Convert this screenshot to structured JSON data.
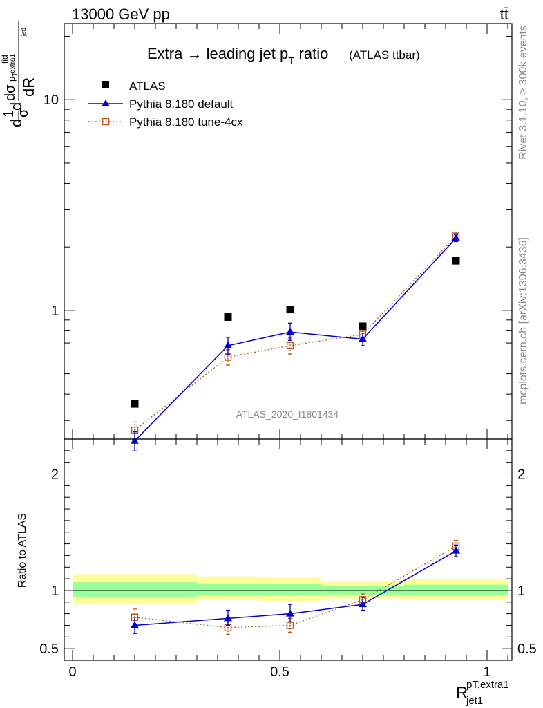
{
  "header": {
    "energy_label": "13000 GeV pp",
    "process_label": "tt̄"
  },
  "side_labels": {
    "rivet": "Rivet 3.1.10, ≥ 300k events",
    "mcplots": "mcplots.cern.ch [arXiv:1306.3436]"
  },
  "chart_data": [
    {
      "type": "scatter",
      "title_main": "Extra → leading jet p",
      "title_sub": "T",
      "title_tail": " ratio",
      "title_note": "(ATLAS ttbar)",
      "analysis_label": "ATLAS_2020_I1801434",
      "ylabel_parts": {
        "d1": "d",
        "one": "1",
        "sigma": "σ",
        "d2": "d",
        "dsig": "dσ",
        "fid": "fid",
        "p": "p",
        "T": "T",
        "extra": "extra1",
        "jet": "jet1",
        "dR": "dR"
      },
      "xlim": [
        -0.02,
        1.06
      ],
      "ylim_log": [
        0.245,
        23
      ],
      "yscale": "log",
      "yticks": [
        1,
        10
      ],
      "ytick_labels": [
        "1",
        "10"
      ],
      "legend_position": "top-left",
      "x": [
        0.15,
        0.375,
        0.525,
        0.7,
        0.925
      ],
      "series": [
        {
          "name": "ATLAS",
          "color": "#000000",
          "marker": "square",
          "values": [
            0.36,
            0.93,
            1.01,
            0.84,
            1.72
          ]
        },
        {
          "name": "Pythia 8.180 default",
          "color": "#0000cc",
          "marker": "triangle",
          "line": "solid",
          "values": [
            0.24,
            0.68,
            0.79,
            0.73,
            2.2
          ],
          "err_lo": [
            0.025,
            0.06,
            0.07,
            0.05,
            0.08
          ],
          "err_hi": [
            0.025,
            0.065,
            0.08,
            0.05,
            0.08
          ]
        },
        {
          "name": "Pythia 8.180 tune-4cx",
          "color": "#b35a1f",
          "marker": "open-square",
          "line": "dotted",
          "values": [
            0.27,
            0.6,
            0.68,
            0.77,
            2.25
          ],
          "err_lo": [
            0.025,
            0.05,
            0.06,
            0.05,
            0.08
          ],
          "err_hi": [
            0.025,
            0.05,
            0.06,
            0.05,
            0.08
          ]
        }
      ]
    },
    {
      "type": "scatter",
      "ylabel": "Ratio to ATLAS",
      "xlabel_main": "R",
      "xlabel_sup": "pT,extra1",
      "xlabel_sub": "jet1",
      "xlim": [
        -0.02,
        1.06
      ],
      "ylim": [
        0.4,
        2.3
      ],
      "yticks": [
        0.5,
        1,
        2
      ],
      "ytick_labels": [
        "0.5",
        "1",
        "2"
      ],
      "xticks": [
        0,
        0.5,
        1
      ],
      "xtick_labels": [
        "0",
        "0.5",
        "1"
      ],
      "bands": {
        "bins": [
          [
            0.0,
            0.3
          ],
          [
            0.3,
            0.45
          ],
          [
            0.45,
            0.6
          ],
          [
            0.6,
            0.8
          ],
          [
            0.8,
            1.05
          ]
        ],
        "yellow": [
          [
            0.88,
            1.14
          ],
          [
            0.92,
            1.12
          ],
          [
            0.91,
            1.11
          ],
          [
            0.93,
            1.08
          ],
          [
            0.92,
            1.1
          ]
        ],
        "green": [
          [
            0.94,
            1.07
          ],
          [
            0.96,
            1.06
          ],
          [
            0.955,
            1.055
          ],
          [
            0.965,
            1.04
          ],
          [
            0.96,
            1.05
          ]
        ],
        "yellow_color": "#ffff99",
        "green_color": "#99ff99"
      },
      "x": [
        0.15,
        0.375,
        0.525,
        0.7,
        0.925
      ],
      "series": [
        {
          "name": "Pythia 8.180 default",
          "color": "#0000cc",
          "marker": "triangle",
          "line": "solid",
          "values": [
            0.7,
            0.76,
            0.8,
            0.88,
            1.34
          ],
          "err_lo": [
            0.07,
            0.06,
            0.07,
            0.05,
            0.05
          ],
          "err_hi": [
            0.07,
            0.07,
            0.08,
            0.06,
            0.05
          ]
        },
        {
          "name": "Pythia 8.180 tune-4cx",
          "color": "#b35a1f",
          "marker": "open-square",
          "line": "dotted",
          "values": [
            0.77,
            0.68,
            0.7,
            0.92,
            1.38
          ],
          "err_lo": [
            0.07,
            0.06,
            0.06,
            0.05,
            0.05
          ],
          "err_hi": [
            0.07,
            0.06,
            0.06,
            0.05,
            0.05
          ]
        }
      ]
    }
  ]
}
